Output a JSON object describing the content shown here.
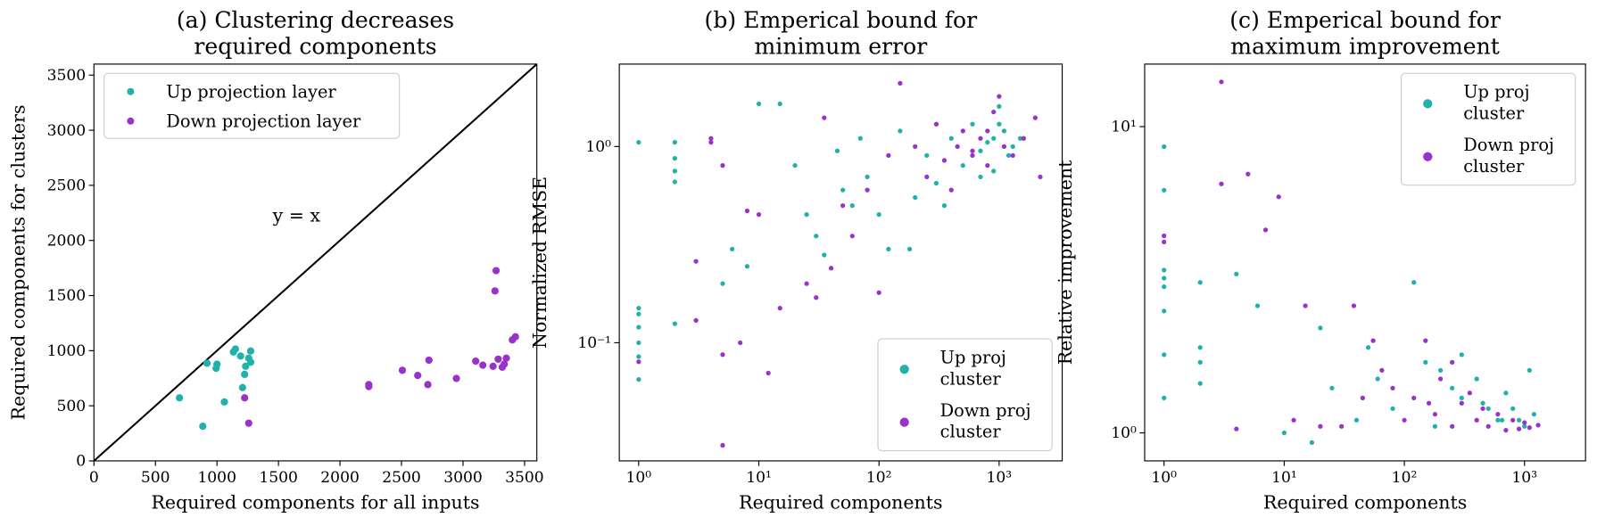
{
  "chart_data": [
    {
      "type": "scatter",
      "title": "(a) Clustering decreases\nrequired components",
      "x_label": "Required components for all inputs",
      "y_label": "Required components for clusters",
      "annotation": "y = x",
      "xlim": [
        0,
        3600
      ],
      "ylim": [
        0,
        3600
      ],
      "xticks": [
        0,
        500,
        1000,
        1500,
        2000,
        2500,
        3000,
        3500
      ],
      "yticks": [
        0,
        500,
        1000,
        1500,
        2000,
        2500,
        3000,
        3500
      ],
      "log_x": false,
      "log_y": false,
      "legend": "upper-left",
      "series": [
        {
          "name": "Up projection layer",
          "color": "#20b2aa",
          "x": [
            695,
            885,
            919,
            1000,
            993,
            1060,
            1134,
            1150,
            1192,
            1208,
            1225,
            1233,
            1258,
            1274,
            1274
          ],
          "y": [
            572,
            314,
            886,
            877,
            840,
            535,
            988,
            1015,
            951,
            665,
            785,
            858,
            932,
            895,
            997
          ]
        },
        {
          "name": "Down projection layer",
          "color": "#9932cc",
          "x": [
            1258,
            1225,
            2234,
            2234,
            2507,
            2632,
            2714,
            2723,
            2946,
            3103,
            3161,
            3260,
            3269,
            3286,
            3319,
            3335,
            3352,
            3401,
            3426,
            3244
          ],
          "y": [
            342,
            572,
            674,
            692,
            822,
            775,
            692,
            914,
            748,
            905,
            868,
            1542,
            1726,
            923,
            850,
            877,
            932,
            1098,
            1126,
            858
          ]
        }
      ]
    },
    {
      "type": "scatter",
      "title": "(b) Emperical bound for\nminimum error",
      "x_label": "Required components",
      "y_label": "Normalized RMSE",
      "xlim": [
        0.69,
        3350
      ],
      "ylim": [
        0.025,
        2.63
      ],
      "xticks": [
        {
          "value": 1,
          "label": "10⁰"
        },
        {
          "value": 10,
          "label": "10¹"
        },
        {
          "value": 100,
          "label": "10²"
        },
        {
          "value": 1000,
          "label": "10³"
        }
      ],
      "yticks": [
        {
          "value": 0.1,
          "label": "10⁻¹"
        },
        {
          "value": 1,
          "label": "10⁰"
        }
      ],
      "log_x": true,
      "log_y": true,
      "legend": "lower-right",
      "series": [
        {
          "name": "Up proj\ncluster",
          "color": "#20b2aa",
          "x": [
            1,
            1,
            1,
            1,
            1,
            1,
            1,
            2,
            2,
            2,
            2,
            2,
            5,
            6,
            8,
            10,
            15,
            20,
            25,
            30,
            35,
            45,
            50,
            60,
            70,
            80,
            100,
            120,
            150,
            200,
            250,
            300,
            400,
            500,
            600,
            700,
            800,
            900,
            1000,
            1100,
            1200,
            1300,
            900,
            1000,
            1500,
            700,
            350,
            180
          ],
          "y": [
            1.05,
            0.15,
            0.14,
            0.12,
            0.1,
            0.085,
            0.065,
            1.05,
            0.87,
            0.75,
            0.66,
            0.125,
            0.2,
            0.3,
            0.245,
            1.65,
            1.65,
            0.8,
            0.45,
            0.35,
            0.28,
            0.95,
            0.6,
            0.5,
            1.1,
            0.7,
            0.45,
            0.3,
            1.2,
            0.55,
            0.9,
            0.65,
            1.1,
            0.8,
            1.3,
            0.95,
            1.05,
            0.75,
            1.6,
            1.2,
            0.9,
            1.0,
            1.1,
            1.3,
            1.1,
            0.7,
            0.5,
            0.3
          ]
        },
        {
          "name": "Down proj\ncluster",
          "color": "#9932cc",
          "x": [
            1,
            3,
            3,
            4,
            4,
            5,
            5,
            5,
            7,
            8,
            10,
            12,
            15,
            25,
            30,
            35,
            40,
            50,
            60,
            80,
            100,
            120,
            150,
            200,
            250,
            300,
            350,
            400,
            450,
            500,
            600,
            700,
            800,
            900,
            1000,
            1100,
            1300,
            1600,
            2000,
            2200,
            800,
            600
          ],
          "y": [
            0.08,
            0.26,
            0.13,
            1.05,
            1.1,
            0.8,
            0.03,
            0.087,
            0.1,
            0.47,
            0.45,
            0.07,
            0.15,
            0.2,
            0.17,
            1.4,
            0.24,
            0.5,
            0.35,
            0.6,
            0.18,
            0.9,
            2.1,
            1.0,
            0.7,
            1.3,
            0.85,
            0.6,
            1.0,
            1.2,
            0.9,
            1.1,
            0.8,
            1.5,
            1.8,
            1.0,
            0.9,
            1.1,
            1.4,
            0.7,
            1.2,
            0.95
          ]
        }
      ]
    },
    {
      "type": "scatter",
      "title": "(c) Emperical bound for\nmaximum improvement",
      "x_label": "Required components",
      "y_label": "Relative improvement",
      "xlim": [
        0.69,
        3220
      ],
      "ylim": [
        0.81,
        16
      ],
      "xticks": [
        {
          "value": 1,
          "label": "10⁰"
        },
        {
          "value": 10,
          "label": "10¹"
        },
        {
          "value": 100,
          "label": "10²"
        },
        {
          "value": 1000,
          "label": "10³"
        }
      ],
      "yticks": [
        {
          "value": 1,
          "label": "10⁰"
        },
        {
          "value": 10,
          "label": "10¹"
        }
      ],
      "log_x": true,
      "log_y": true,
      "legend": "upper-right",
      "series": [
        {
          "name": "Up proj\ncluster",
          "color": "#20b2aa",
          "x": [
            1,
            1,
            1,
            1,
            1,
            1,
            1,
            1,
            2,
            2,
            2,
            2,
            4,
            6,
            10,
            17,
            20,
            25,
            40,
            50,
            60,
            80,
            120,
            150,
            200,
            250,
            300,
            400,
            500,
            600,
            700,
            800,
            900,
            1000,
            1100,
            1200,
            300,
            450,
            650,
            180
          ],
          "y": [
            8.6,
            6.2,
            3.4,
            3.2,
            3.0,
            2.5,
            1.8,
            1.3,
            3.1,
            1.9,
            1.7,
            1.45,
            3.3,
            2.6,
            1.0,
            0.93,
            2.2,
            1.4,
            1.1,
            1.9,
            1.5,
            1.2,
            3.1,
            1.7,
            1.6,
            1.4,
            1.3,
            1.5,
            1.2,
            1.1,
            1.35,
            1.2,
            1.1,
            1.05,
            1.6,
            1.15,
            1.8,
            1.25,
            1.1,
            1.05
          ]
        },
        {
          "name": "Down proj\ncluster",
          "color": "#9932cc",
          "x": [
            1,
            1,
            3,
            3,
            4,
            5,
            7,
            9,
            12,
            15,
            20,
            30,
            38,
            45,
            55,
            65,
            80,
            100,
            120,
            150,
            180,
            200,
            250,
            300,
            350,
            400,
            450,
            500,
            600,
            700,
            800,
            900,
            1000,
            1100,
            1300,
            250,
            160
          ],
          "y": [
            4.4,
            4.2,
            14,
            6.5,
            1.03,
            7,
            4.6,
            5.9,
            1.1,
            2.6,
            1.05,
            1.05,
            2.6,
            1.3,
            2.0,
            1.6,
            1.4,
            1.1,
            1.3,
            2.0,
            1.15,
            1.5,
            1.05,
            1.25,
            1.35,
            1.1,
            1.2,
            1.05,
            1.15,
            1.02,
            1.1,
            1.03,
            1.08,
            1.04,
            1.06,
            1.7,
            1.25
          ]
        }
      ]
    }
  ]
}
